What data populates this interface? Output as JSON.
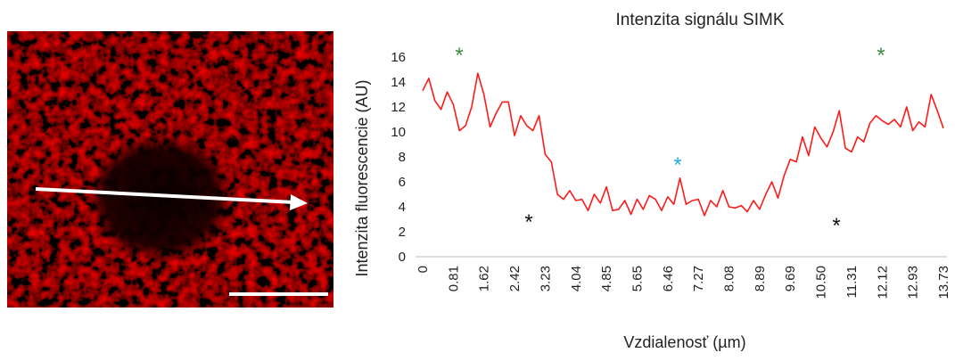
{
  "chart_data": {
    "type": "line",
    "title": "Intenzita signálu SIMK",
    "xlabel": "Vzdialenosť (µm)",
    "ylabel": "Intenzita fluorescencie (AU)",
    "color": "#ff1a1a",
    "categories": [
      "0",
      null,
      null,
      null,
      null,
      "0.81",
      null,
      null,
      null,
      null,
      "1.62",
      null,
      null,
      null,
      null,
      "2.42",
      null,
      null,
      null,
      null,
      "3.23",
      null,
      null,
      null,
      null,
      "4.04",
      null,
      null,
      null,
      null,
      "4.85",
      null,
      null,
      null,
      null,
      "5.65",
      null,
      null,
      null,
      null,
      "6.46",
      null,
      null,
      null,
      null,
      "7.27",
      null,
      null,
      null,
      null,
      "8.08",
      null,
      null,
      null,
      null,
      "8.89",
      null,
      null,
      null,
      null,
      "9.69",
      null,
      null,
      null,
      null,
      "10.50",
      null,
      null,
      null,
      null,
      "11.31",
      null,
      null,
      null,
      null,
      "12.12",
      null,
      null,
      null,
      null,
      "12.93",
      null,
      null,
      null,
      null,
      "13.73"
    ],
    "values": [
      13.3,
      14.3,
      12.5,
      11.8,
      13.2,
      12.2,
      10.1,
      10.5,
      12.0,
      14.7,
      13.0,
      10.4,
      11.5,
      12.4,
      12.4,
      9.7,
      11.3,
      10.5,
      10.1,
      11.3,
      8.2,
      7.6,
      5.0,
      4.6,
      5.3,
      4.5,
      4.6,
      3.7,
      5.0,
      4.3,
      5.6,
      3.7,
      3.8,
      4.5,
      3.4,
      4.6,
      3.8,
      4.9,
      4.6,
      3.7,
      4.8,
      4.2,
      6.3,
      4.2,
      4.5,
      4.6,
      3.3,
      4.5,
      4.0,
      5.3,
      4.0,
      3.9,
      4.1,
      3.6,
      4.5,
      3.8,
      5.0,
      6.0,
      4.7,
      6.5,
      7.8,
      7.6,
      9.6,
      8.1,
      10.4,
      9.5,
      8.8,
      10.0,
      11.7,
      8.7,
      8.4,
      9.6,
      9.2,
      10.7,
      11.3,
      10.9,
      10.6,
      11.0,
      10.4,
      12.0,
      10.1,
      10.8,
      10.4,
      13.0,
      11.7,
      10.3
    ],
    "ylim": [
      0,
      16
    ],
    "yticks": [
      0,
      2,
      4,
      6,
      8,
      10,
      12,
      14,
      16
    ],
    "annotations": [
      {
        "text": "*",
        "color": "#3d8a3d"
      },
      {
        "text": "*",
        "color": "#3d8a3d"
      },
      {
        "text": "*",
        "color": "#111111"
      },
      {
        "text": "*",
        "color": "#111111"
      },
      {
        "text": "*",
        "color": "#29a8e0"
      }
    ]
  }
}
